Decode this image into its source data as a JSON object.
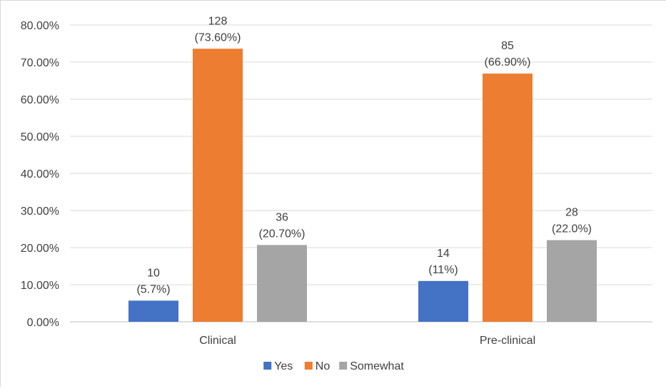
{
  "chart_data": {
    "type": "bar",
    "categories": [
      "Clinical",
      "Pre-clinical"
    ],
    "series": [
      {
        "name": "Yes",
        "color": "#4472C4",
        "values": [
          5.7,
          11.0
        ],
        "labels": [
          [
            "10",
            "(5.7%)"
          ],
          [
            "14",
            "(11%)"
          ]
        ]
      },
      {
        "name": "No",
        "color": "#ED7D31",
        "values": [
          73.6,
          66.9
        ],
        "labels": [
          [
            "128",
            "(73.60%)"
          ],
          [
            "85",
            "(66.90%)"
          ]
        ]
      },
      {
        "name": "Somewhat",
        "color": "#A5A5A5",
        "values": [
          20.7,
          22.0
        ],
        "labels": [
          [
            "36",
            "(20.70%)"
          ],
          [
            "28",
            "(22.0%)"
          ]
        ]
      }
    ],
    "y_ticks": [
      "0.00%",
      "10.00%",
      "20.00%",
      "30.00%",
      "40.00%",
      "50.00%",
      "60.00%",
      "70.00%",
      "80.00%"
    ],
    "ylim": [
      0,
      80
    ],
    "grid": true,
    "legend_position": "bottom",
    "title": "",
    "xlabel": "",
    "ylabel": ""
  }
}
